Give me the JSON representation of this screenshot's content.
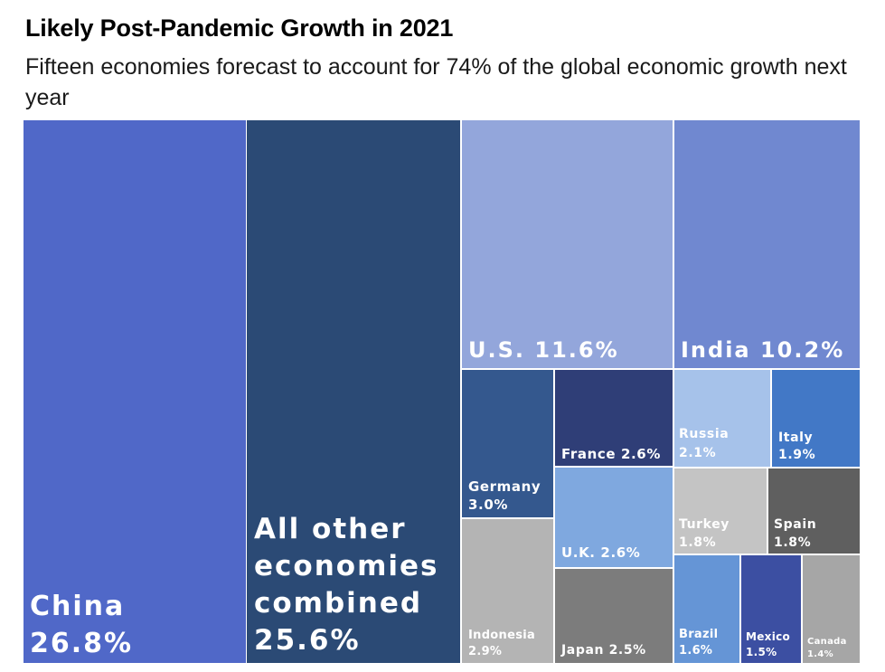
{
  "chart_data": {
    "type": "treemap",
    "title": "Likely Post-Pandemic Growth in 2021",
    "subtitle": "Fifteen economies forecast to account for 74% of the global economic growth next year",
    "unit": "%",
    "items": [
      {
        "name": "China",
        "value": 26.8,
        "label": "China 26.8%",
        "color": "#5068c8"
      },
      {
        "name": "All other economies combined",
        "value": 25.6,
        "label": "All other economies combined 25.6%",
        "color": "#2b4a75"
      },
      {
        "name": "U.S.",
        "value": 11.6,
        "label": "U.S. 11.6%",
        "color": "#93a6db"
      },
      {
        "name": "India",
        "value": 10.2,
        "label": "India 10.2%",
        "color": "#7088d0"
      },
      {
        "name": "Germany",
        "value": 3.0,
        "label": "Germany 3.0%",
        "color": "#34588e"
      },
      {
        "name": "Indonesia",
        "value": 2.9,
        "label": "Indonesia 2.9%",
        "color": "#b4b4b4"
      },
      {
        "name": "France",
        "value": 2.6,
        "label": "France 2.6%",
        "color": "#2f3e77"
      },
      {
        "name": "U.K.",
        "value": 2.6,
        "label": "U.K. 2.6%",
        "color": "#7fa8df"
      },
      {
        "name": "Japan",
        "value": 2.5,
        "label": "Japan 2.5%",
        "color": "#7c7c7c"
      },
      {
        "name": "Russia",
        "value": 2.1,
        "label": "Russia 2.1%",
        "color": "#a6c2ea"
      },
      {
        "name": "Italy",
        "value": 1.9,
        "label": "Italy 1.9%",
        "color": "#4278c6"
      },
      {
        "name": "Turkey",
        "value": 1.8,
        "label": "Turkey 1.8%",
        "color": "#c4c4c4"
      },
      {
        "name": "Spain",
        "value": 1.8,
        "label": "Spain 1.8%",
        "color": "#5f5f5f"
      },
      {
        "name": "Brazil",
        "value": 1.6,
        "label": "Brazil 1.6%",
        "color": "#6595d6"
      },
      {
        "name": "Mexico",
        "value": 1.5,
        "label": "Mexico 1.5%",
        "color": "#3c4fa2"
      },
      {
        "name": "Canada",
        "value": 1.4,
        "label": "Canada 1.4%",
        "color": "#a6a6a6"
      }
    ]
  }
}
